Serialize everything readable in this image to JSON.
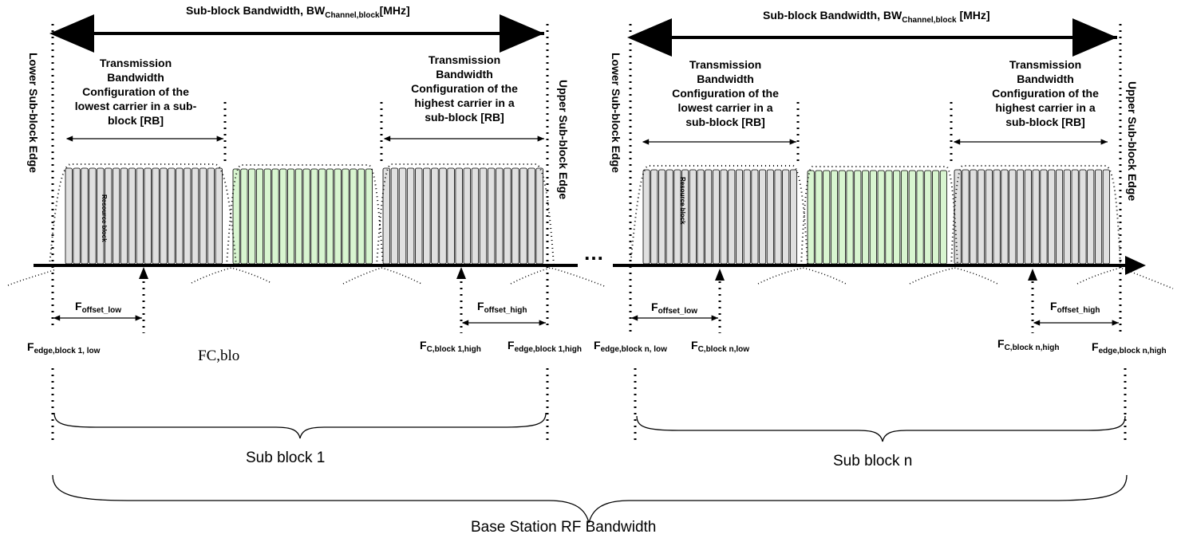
{
  "block1": {
    "bw_label": "Sub-block Bandwidth,  BW",
    "bw_sub": "Channel,block",
    "bw_unit": "[MHz]",
    "lower_edge": "Lower Sub-block Edge",
    "upper_edge": "Upper Sub-block Edge",
    "tbc_low": [
      "Transmission",
      "Bandwidth",
      "Configuration of the",
      "lowest carrier in a sub-",
      "block  [RB]"
    ],
    "tbc_high": [
      "Transmission",
      "Bandwidth",
      "Configuration of the",
      "highest carrier in a",
      "sub-block [RB]"
    ],
    "resource_block": "Resource block",
    "foffset_low": {
      "main": "F",
      "sub": "offset_low"
    },
    "foffset_high": {
      "main": "F",
      "sub": "offset_high"
    },
    "fedge_low": {
      "main": "F",
      "sub": "edge,block 1, low"
    },
    "fc_low_partial": "FC,blo",
    "fc_high": {
      "main": "F",
      "sub": "C,block 1,high"
    },
    "fedge_high": {
      "main": "F",
      "sub": "edge,block 1,high"
    },
    "brace_label": "Sub block 1"
  },
  "blockn": {
    "bw_label": "Sub-block Bandwidth,  BW",
    "bw_sub": "Channel,block",
    "bw_unit": " [MHz]",
    "lower_edge": "Lower Sub-block Edge",
    "upper_edge": "Upper Sub-block Edge",
    "tbc_low": [
      "Transmission",
      "Bandwidth",
      "Configuration of the",
      "lowest carrier in a",
      "sub-block  [RB]"
    ],
    "tbc_high": [
      "Transmission",
      "Bandwidth",
      "Configuration of the",
      "highest carrier in a",
      "sub-block [RB]"
    ],
    "resource_block": "Resource block",
    "foffset_low": {
      "main": "F",
      "sub": "offset_low"
    },
    "foffset_high": {
      "main": "F",
      "sub": "offset_high"
    },
    "fedge_low": {
      "main": "F",
      "sub": "edge,block n, low"
    },
    "fc_low": {
      "main": "F",
      "sub": "C,block n,low"
    },
    "fc_high": {
      "main": "F",
      "sub": "C,block n,high"
    },
    "fedge_high": {
      "main": "F",
      "sub": "edge,block n,high"
    },
    "brace_label": "Sub block n"
  },
  "ellipsis": "…",
  "base_station": "Base Station RF Bandwidth",
  "colors": {
    "grey_rb": "#e0e0e0",
    "green_rb": "#d8f5d0",
    "line": "#000000"
  }
}
